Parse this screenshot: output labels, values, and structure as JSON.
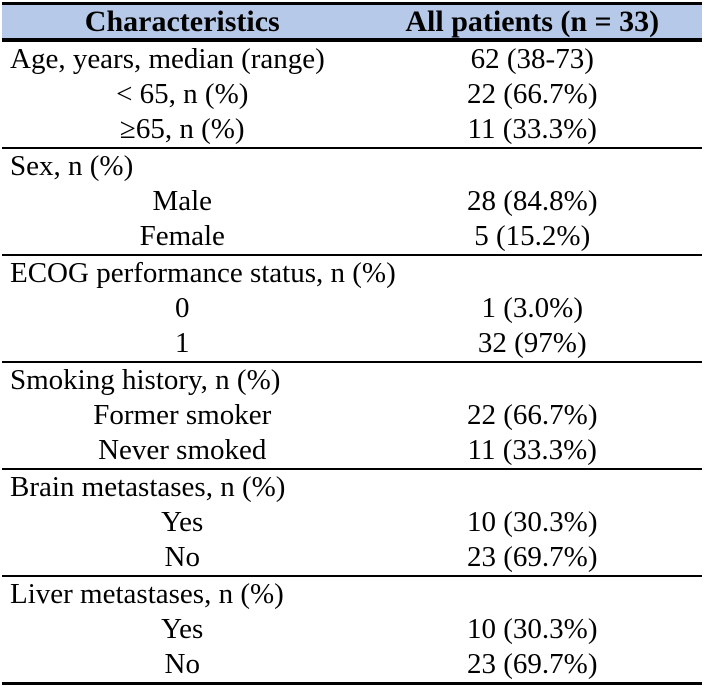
{
  "table": {
    "title_semantic": "patient-characteristics-table",
    "colors": {
      "header_bg": "#B6C9E8",
      "rule": "#000000",
      "text": "#000000",
      "page_bg": "#FFFFFF"
    },
    "header": {
      "col1": "Characteristics",
      "col2": "All patients (n = 33)"
    },
    "sections": [
      {
        "rows": [
          {
            "label": "Age, years, median (range)",
            "value": "62 (38-73)",
            "indent": false
          },
          {
            "label": "< 65, n (%)",
            "value": "22 (66.7%)",
            "indent": true
          },
          {
            "label": "≥65, n (%)",
            "value": "11 (33.3%)",
            "indent": true
          }
        ]
      },
      {
        "rows": [
          {
            "label": "Sex, n (%)",
            "value": "",
            "indent": false
          },
          {
            "label": "Male",
            "value": "28 (84.8%)",
            "indent": true
          },
          {
            "label": "Female",
            "value": "5 (15.2%)",
            "indent": true
          }
        ]
      },
      {
        "rows": [
          {
            "label": "ECOG performance status, n (%)",
            "value": "",
            "indent": false
          },
          {
            "label": "0",
            "value": "1 (3.0%)",
            "indent": true
          },
          {
            "label": "1",
            "value": "32 (97%)",
            "indent": true
          }
        ]
      },
      {
        "rows": [
          {
            "label": "Smoking history, n (%)",
            "value": "",
            "indent": false
          },
          {
            "label": "Former smoker",
            "value": "22 (66.7%)",
            "indent": true
          },
          {
            "label": "Never smoked",
            "value": "11 (33.3%)",
            "indent": true
          }
        ]
      },
      {
        "rows": [
          {
            "label": "Brain metastases, n (%)",
            "value": "",
            "indent": false
          },
          {
            "label": "Yes",
            "value": "10 (30.3%)",
            "indent": true
          },
          {
            "label": "No",
            "value": "23 (69.7%)",
            "indent": true
          }
        ]
      },
      {
        "rows": [
          {
            "label": "Liver metastases, n (%)",
            "value": "",
            "indent": false
          },
          {
            "label": "Yes",
            "value": "10 (30.3%)",
            "indent": true
          },
          {
            "label": "No",
            "value": "23 (69.7%)",
            "indent": true
          }
        ]
      }
    ]
  }
}
